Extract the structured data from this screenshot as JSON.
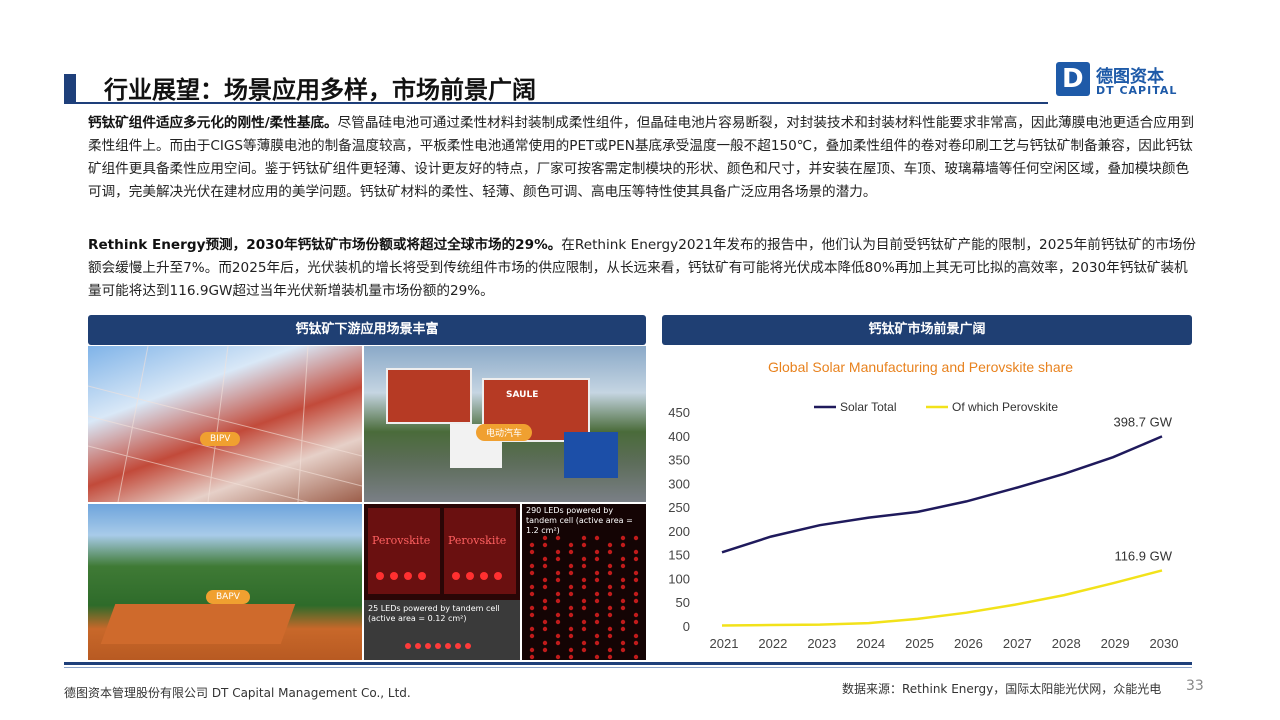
{
  "header": {
    "title": "行业展望：场景应用多样，市场前景广阔",
    "logo_cn": "德图资本",
    "logo_en": "DT CAPITAL",
    "logo_mark": "D"
  },
  "paragraphs": {
    "p1_bold": "钙钛矿组件适应多元化的刚性/柔性基底。",
    "p1_text": "尽管晶硅电池可通过柔性材料封装制成柔性组件，但晶硅电池片容易断裂，对封装技术和封装材料性能要求非常高，因此薄膜电池更适合应用到柔性组件上。而由于CIGS等薄膜电池的制备温度较高，平板柔性电池通常使用的PET或PEN基底承受温度一般不超150℃，叠加柔性组件的卷对卷印刷工艺与钙钛矿制备兼容，因此钙钛矿组件更具备柔性应用空间。鉴于钙钛矿组件更轻薄、设计更友好的特点，厂家可按客需定制模块的形状、颜色和尺寸，并安装在屋顶、车顶、玻璃幕墙等任何空闲区域，叠加模块颜色可调，完美解决光伏在建材应用的美学问题。钙钛矿材料的柔性、轻薄、颜色可调、高电压等特性使其具备广泛应用各场景的潜力。",
    "p2_bold": "Rethink Energy预测，2030年钙钛矿市场份额或将超过全球市场的29%。",
    "p2_text": "在Rethink Energy2021年发布的报告中，他们认为目前受钙钛矿产能的限制，2025年前钙钛矿的市场份额会缓慢上升至7%。而2025年后，光伏装机的增长将受到传统组件市场的供应限制，从长远来看，钙钛矿有可能将光伏成本降低80%再加上其无可比拟的高效率，2030年钙钛矿装机量可能将达到116.9GW超过当年光伏新增装机量市场份额的29%。"
  },
  "banners": {
    "left": "钙钛矿下游应用场景丰富",
    "right": "钙钛矿市场前景广阔"
  },
  "photos": {
    "bipv_label": "BIPV",
    "truck_label": "电动汽车",
    "truck_brand": "SAULE",
    "bapv_label": "BAPV",
    "led_text": "Perovskite",
    "caption_25": "25 LEDs powered  by tandem cell (active area = 0.12 cm²)",
    "caption_290": "290 LEDs powered by tandem cell (active area = 1.2 cm²)"
  },
  "chart_data": {
    "type": "line",
    "title": "Global Solar Manufacturing and Perovskite share",
    "x": [
      2021,
      2022,
      2023,
      2024,
      2025,
      2026,
      2027,
      2028,
      2029,
      2030
    ],
    "ylim": [
      0,
      450
    ],
    "yticks": [
      0,
      50,
      100,
      150,
      200,
      250,
      300,
      350,
      400,
      450
    ],
    "legend_position": "top",
    "series": [
      {
        "name": "Solar Total",
        "color": "#1f1a5c",
        "values": [
          155,
          188,
          212,
          228,
          240,
          262,
          290,
          320,
          355,
          398.7
        ]
      },
      {
        "name": "Of which Perovskite",
        "color": "#f2e21a",
        "values": [
          1,
          2,
          3,
          6,
          15,
          28,
          45,
          65,
          90,
          116.9
        ]
      }
    ],
    "annotations": [
      "398.7 GW",
      "116.9 GW"
    ],
    "title_color": "#e8821e"
  },
  "footer": {
    "company": "德图资本管理股份有限公司  DT Capital Management  Co., Ltd.",
    "source": "数据来源：Rethink  Energy，国际太阳能光伏网，众能光电",
    "page": "33"
  }
}
